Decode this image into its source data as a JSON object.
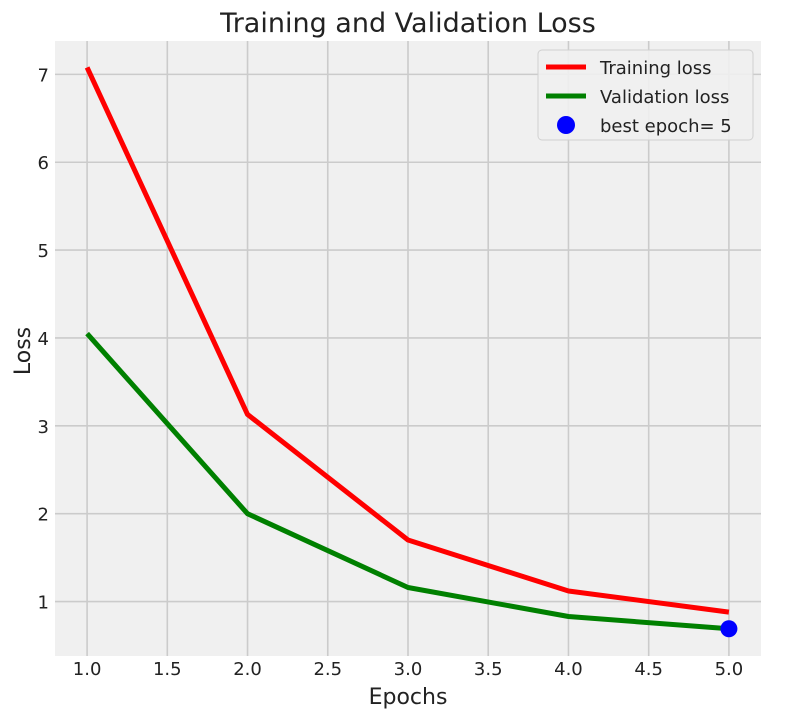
{
  "chart_data": {
    "type": "line",
    "title": "Training and Validation Loss",
    "xlabel": "Epochs",
    "ylabel": "Loss",
    "xlim": [
      0.8,
      5.2
    ],
    "ylim": [
      0.38,
      7.38
    ],
    "xticks": [
      1.0,
      1.5,
      2.0,
      2.5,
      3.0,
      3.5,
      4.0,
      4.5,
      5.0
    ],
    "xtick_labels": [
      "1.0",
      "1.5",
      "2.0",
      "2.5",
      "3.0",
      "3.5",
      "4.0",
      "4.5",
      "5.0"
    ],
    "yticks": [
      1,
      2,
      3,
      4,
      5,
      6,
      7
    ],
    "ytick_labels": [
      "1",
      "2",
      "3",
      "4",
      "5",
      "6",
      "7"
    ],
    "grid": true,
    "legend_position": "top-right",
    "x": [
      1,
      2,
      3,
      4,
      5
    ],
    "series": [
      {
        "name": "Training loss",
        "color": "#ff0000",
        "values": [
          7.08,
          3.13,
          1.7,
          1.12,
          0.88
        ]
      },
      {
        "name": "Validation loss",
        "color": "#008000",
        "values": [
          4.05,
          2.0,
          1.16,
          0.83,
          0.69
        ]
      }
    ],
    "markers": [
      {
        "name": "best epoch= 5",
        "color": "#0000ff",
        "x": 5,
        "y": 0.69
      }
    ]
  }
}
